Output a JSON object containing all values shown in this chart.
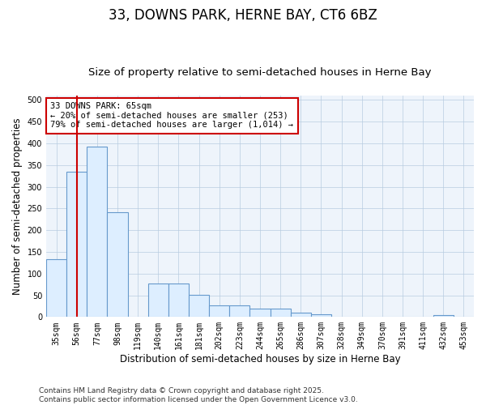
{
  "title": "33, DOWNS PARK, HERNE BAY, CT6 6BZ",
  "subtitle": "Size of property relative to semi-detached houses in Herne Bay",
  "xlabel": "Distribution of semi-detached houses by size in Herne Bay",
  "ylabel": "Number of semi-detached properties",
  "categories": [
    "35sqm",
    "56sqm",
    "77sqm",
    "98sqm",
    "119sqm",
    "140sqm",
    "161sqm",
    "181sqm",
    "202sqm",
    "223sqm",
    "244sqm",
    "265sqm",
    "286sqm",
    "307sqm",
    "328sqm",
    "349sqm",
    "370sqm",
    "391sqm",
    "411sqm",
    "432sqm",
    "453sqm"
  ],
  "values": [
    133,
    335,
    393,
    241,
    0,
    77,
    77,
    51,
    27,
    27,
    20,
    20,
    10,
    7,
    0,
    0,
    0,
    0,
    0,
    5,
    0
  ],
  "bar_color": "#ddeeff",
  "bar_edge_color": "#6699cc",
  "vline_x_index": 1,
  "vline_color": "#cc0000",
  "annotation_line1": "33 DOWNS PARK: 65sqm",
  "annotation_line2": "← 20% of semi-detached houses are smaller (253)",
  "annotation_line3": "79% of semi-detached houses are larger (1,014) →",
  "annotation_box_color": "#ffffff",
  "annotation_box_edge": "#cc0000",
  "ylim": [
    0,
    510
  ],
  "yticks": [
    0,
    50,
    100,
    150,
    200,
    250,
    300,
    350,
    400,
    450,
    500
  ],
  "footer": "Contains HM Land Registry data © Crown copyright and database right 2025.\nContains public sector information licensed under the Open Government Licence v3.0.",
  "bg_color": "#ffffff",
  "plot_bg_color": "#eef4fb",
  "title_fontsize": 12,
  "subtitle_fontsize": 9.5,
  "tick_fontsize": 7,
  "ylabel_fontsize": 8.5,
  "xlabel_fontsize": 8.5,
  "footer_fontsize": 6.5,
  "annotation_fontsize": 7.5
}
